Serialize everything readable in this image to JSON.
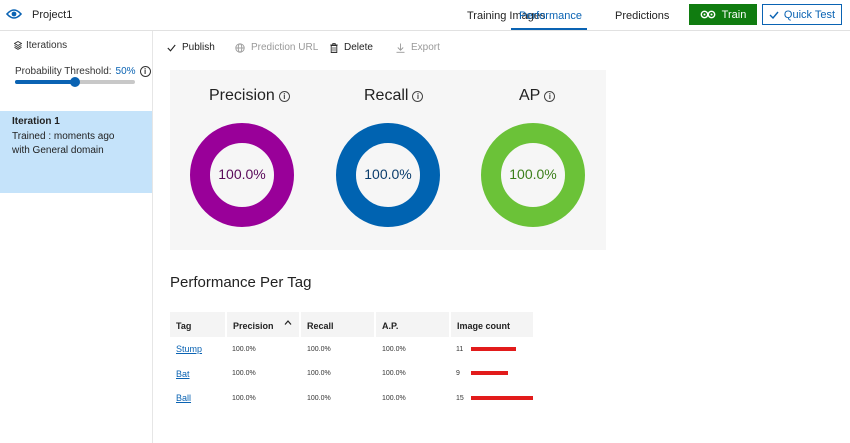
{
  "header": {
    "project_title": "Project1",
    "tabs": [
      {
        "label": "Training Images",
        "active": false
      },
      {
        "label": "Performance",
        "active": true
      },
      {
        "label": "Predictions",
        "active": false
      }
    ],
    "train_label": "Train",
    "quick_test_label": "Quick Test",
    "accent_color": "#0a63b3",
    "train_color": "#107c10"
  },
  "sidebar": {
    "iterations_label": "Iterations",
    "threshold_label": "Probability Threshold:",
    "threshold_value": "50%",
    "threshold_fraction": 0.5,
    "iteration": {
      "name": "Iteration 1",
      "description": "Trained : moments ago with General domain"
    }
  },
  "toolbar": {
    "publish": "Publish",
    "prediction_url": "Prediction URL",
    "delete": "Delete",
    "export": "Export"
  },
  "metrics": [
    {
      "label": "Precision",
      "value": "100.0%",
      "color": "#990099"
    },
    {
      "label": "Recall",
      "value": "100.0%",
      "color": "#0063b1"
    },
    {
      "label": "AP",
      "value": "100.0%",
      "color": "#6bc238"
    }
  ],
  "per_tag": {
    "title": "Performance Per Tag",
    "columns": [
      "Tag",
      "Precision",
      "Recall",
      "A.P.",
      "Image count"
    ],
    "rows": [
      {
        "tag": "Stump",
        "precision": "100.0%",
        "recall": "100.0%",
        "ap": "100.0%",
        "count": "11",
        "count_value": 11
      },
      {
        "tag": "Bat",
        "precision": "100.0%",
        "recall": "100.0%",
        "ap": "100.0%",
        "count": "9",
        "count_value": 9
      },
      {
        "tag": "Ball",
        "precision": "100.0%",
        "recall": "100.0%",
        "ap": "100.0%",
        "count": "15",
        "count_value": 15
      }
    ]
  }
}
